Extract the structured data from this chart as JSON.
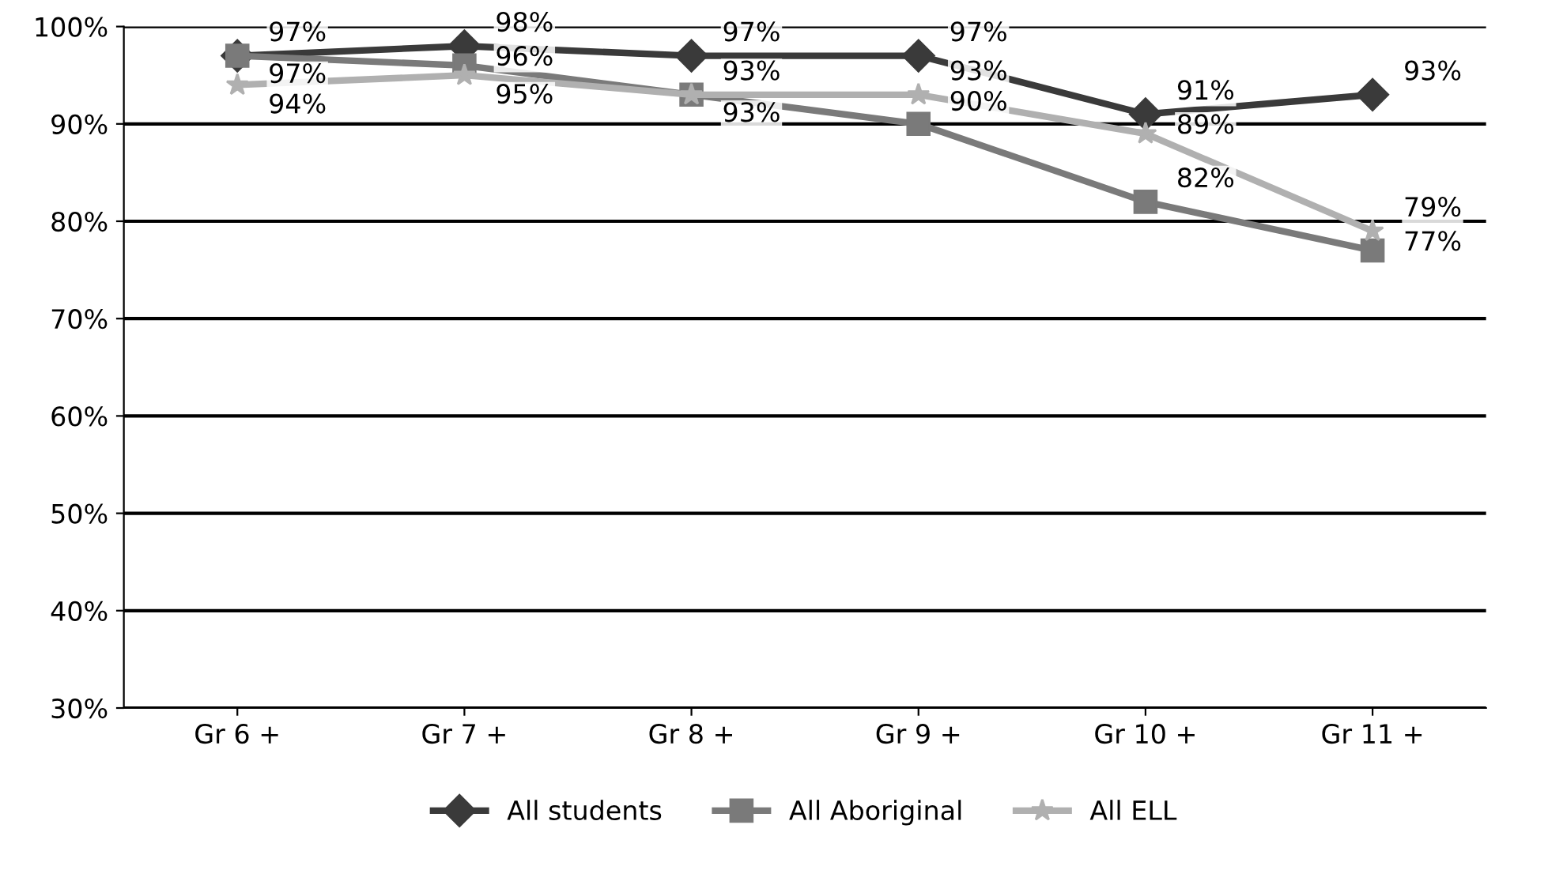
{
  "chart_data": {
    "type": "line",
    "categories": [
      "Gr 6 +",
      "Gr 7 +",
      "Gr 8 +",
      "Gr 9 +",
      "Gr 10 +",
      "Gr 11 +"
    ],
    "series": [
      {
        "name": "All students",
        "color": "#3a3a3a",
        "marker": "diamond",
        "values": [
          97,
          98,
          97,
          97,
          91,
          93
        ],
        "value_labels": [
          "97%",
          "98%",
          "97%",
          "97%",
          "91%",
          "93%"
        ]
      },
      {
        "name": "All Aboriginal",
        "color": "#7a7a7a",
        "marker": "square",
        "values": [
          97,
          96,
          93,
          90,
          82,
          77
        ],
        "value_labels": [
          "97%",
          "96%",
          "93%",
          "90%",
          "82%",
          "77%"
        ]
      },
      {
        "name": "All ELL",
        "color": "#b0b0b0",
        "marker": "star",
        "values": [
          94,
          95,
          93,
          93,
          89,
          79
        ],
        "value_labels": [
          "94%",
          "95%",
          "93%",
          "93%",
          "89%",
          "79%"
        ]
      }
    ],
    "ylim": [
      30,
      100
    ],
    "yticks": [
      {
        "value": 30,
        "label": "30%"
      },
      {
        "value": 40,
        "label": "40%"
      },
      {
        "value": 50,
        "label": "50%"
      },
      {
        "value": 60,
        "label": "60%"
      },
      {
        "value": 70,
        "label": "70%"
      },
      {
        "value": 80,
        "label": "80%"
      },
      {
        "value": 90,
        "label": "90%"
      },
      {
        "value": 100,
        "label": "100%"
      }
    ],
    "grid": "y",
    "legend": "bottom",
    "line_style": "solid"
  }
}
